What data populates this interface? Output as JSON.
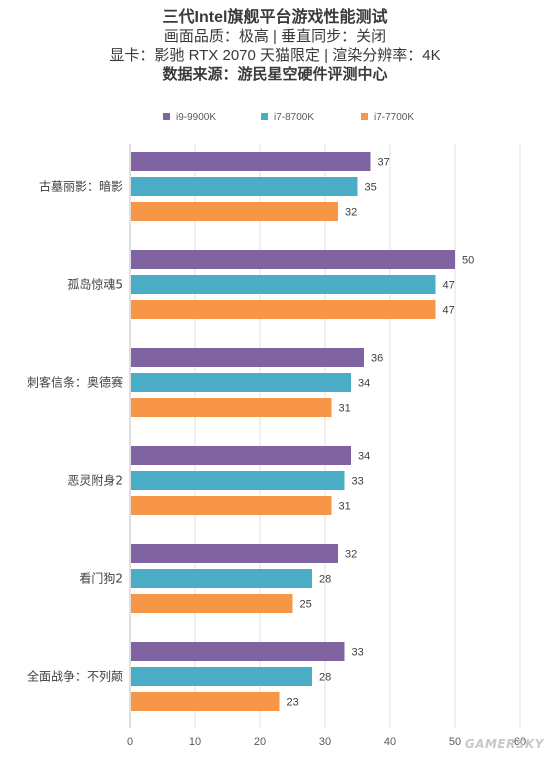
{
  "title": "三代Intel旗舰平台游戏性能测试",
  "subtitle_lines": [
    "画面品质：极高 | 垂直同步：关闭",
    "显卡：影驰 RTX 2070 天猫限定 | 渲染分辨率：4K"
  ],
  "source": "数据来源：游民星空硬件评测中心",
  "watermark": "GAMERSKY",
  "chart_data": {
    "type": "bar",
    "orientation": "horizontal",
    "categories": [
      "古墓丽影：暗影",
      "孤岛惊魂5",
      "刺客信条：奥德赛",
      "恶灵附身2",
      "看门狗2",
      "全面战争：不列颠"
    ],
    "series": [
      {
        "name": "i9-9900K",
        "color": "#8064a2",
        "values": [
          37,
          50,
          36,
          34,
          32,
          33
        ]
      },
      {
        "name": "i7-8700K",
        "color": "#4bacc6",
        "values": [
          35,
          47,
          34,
          33,
          28,
          28
        ]
      },
      {
        "name": "i7-7700K",
        "color": "#f79646",
        "values": [
          32,
          47,
          31,
          31,
          25,
          23
        ]
      }
    ],
    "xlim": [
      0,
      60
    ],
    "xticks": [
      0,
      10,
      20,
      30,
      40,
      50,
      60
    ],
    "grid": true,
    "legend_position": "top"
  }
}
